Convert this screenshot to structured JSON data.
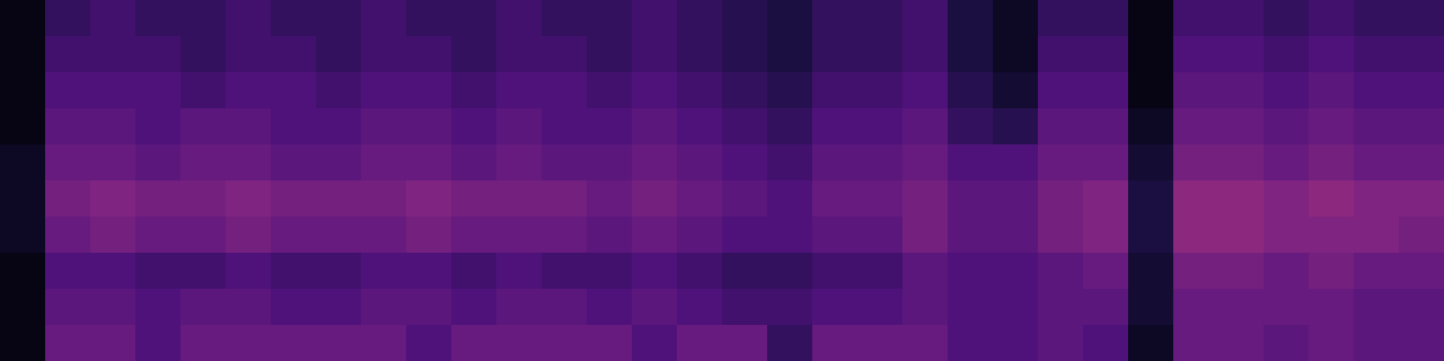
{
  "chart_data": {
    "type": "heatmap",
    "tick_labels": false,
    "zlim": [
      0,
      16
    ],
    "cells": [
      [
        0.5,
        3,
        3.5,
        3,
        3,
        3.5,
        3,
        3,
        3.5,
        3,
        3,
        3.5,
        3,
        3,
        3.5,
        3,
        2.5,
        2,
        3,
        3,
        3.5,
        2,
        1,
        3,
        3,
        0.5,
        3.5,
        3.5,
        3,
        3.5,
        3,
        3
      ],
      [
        0.5,
        3.5,
        3.5,
        3.5,
        3,
        3.5,
        3.5,
        3,
        3.5,
        3.5,
        3,
        3.5,
        3.5,
        3,
        3.5,
        3,
        2.5,
        2,
        3,
        3,
        3.5,
        2,
        1,
        3.5,
        3.5,
        0.5,
        4,
        4,
        3.5,
        4,
        3.5,
        3.5
      ],
      [
        0.5,
        4,
        4,
        4,
        3.5,
        4,
        4,
        3.5,
        4,
        4,
        3.5,
        4,
        4,
        3.5,
        4,
        3.5,
        3,
        2.5,
        3.5,
        3.5,
        4,
        2.5,
        1.5,
        4,
        4,
        0.5,
        4.5,
        4.5,
        4,
        4.5,
        4,
        4
      ],
      [
        0.5,
        4.5,
        4.5,
        4,
        4.5,
        4.5,
        4,
        4,
        4.5,
        4.5,
        4,
        4.5,
        4,
        4,
        4.5,
        4,
        3.5,
        3,
        4,
        4,
        4.5,
        3,
        2.5,
        4.5,
        4.5,
        1,
        5,
        5,
        4.5,
        5,
        4.5,
        4.5
      ],
      [
        1,
        5,
        5,
        4.5,
        5,
        5,
        4.5,
        4.5,
        5,
        5,
        4.5,
        5,
        4.5,
        4.5,
        5,
        4.5,
        4,
        3.5,
        4.5,
        4.5,
        5,
        4,
        4,
        5,
        5,
        1.5,
        5.5,
        5.5,
        5,
        5.5,
        5,
        5
      ],
      [
        1,
        5.5,
        6,
        5.5,
        5.5,
        6,
        5.5,
        5.5,
        5.5,
        6,
        5.5,
        5.5,
        5.5,
        5,
        5.5,
        5,
        4.5,
        4,
        5,
        5,
        5.5,
        4.5,
        4.5,
        5.5,
        6,
        2,
        6.5,
        6.5,
        6,
        6.5,
        6,
        6
      ],
      [
        1,
        5,
        5.5,
        5,
        5,
        5.5,
        5,
        5,
        5,
        5.5,
        5,
        5,
        5,
        4.5,
        5,
        4.5,
        4,
        4,
        4.5,
        4.5,
        5.5,
        4.5,
        4.5,
        5.5,
        6,
        2,
        6.5,
        6.5,
        6,
        6,
        6,
        5.5
      ],
      [
        0.5,
        4,
        4,
        3.5,
        3.5,
        4,
        3.5,
        3.5,
        4,
        4,
        3.5,
        4,
        3.5,
        3.5,
        4,
        3.5,
        3,
        3,
        3.5,
        3.5,
        4.5,
        4,
        4,
        4.5,
        5,
        1.5,
        5.5,
        5.5,
        5,
        5.5,
        5,
        5
      ],
      [
        0.5,
        4.5,
        4.5,
        4,
        4.5,
        4.5,
        4,
        4,
        4.5,
        4.5,
        4,
        4.5,
        4.5,
        4,
        4.5,
        4,
        3.5,
        3.5,
        4,
        4,
        4.5,
        4,
        4,
        4.5,
        4.5,
        1.5,
        5,
        5,
        5,
        5,
        4.5,
        4.5
      ],
      [
        0.5,
        5,
        5,
        4,
        5,
        5,
        5,
        5,
        5,
        4,
        5,
        5,
        5,
        5,
        4,
        5,
        5,
        3,
        5,
        5,
        5,
        4,
        4,
        4.5,
        4,
        1,
        5,
        5,
        4.5,
        5,
        4.5,
        4.5
      ]
    ]
  }
}
